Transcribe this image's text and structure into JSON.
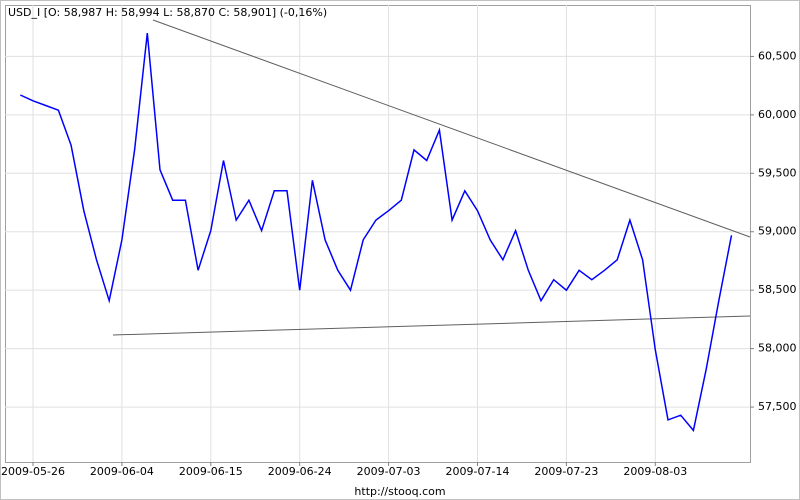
{
  "chart_data": {
    "type": "line",
    "title": "USD_I [O: 58,987  H: 58,994  L: 58,870  C: 58,901] (-0,16%)",
    "footer": "http://stooq.com",
    "categories": [
      null,
      "2009-05-26",
      null,
      null,
      null,
      null,
      null,
      null,
      "2009-06-04",
      null,
      null,
      null,
      null,
      null,
      null,
      "2009-06-15",
      null,
      null,
      null,
      null,
      null,
      null,
      "2009-06-24",
      null,
      null,
      null,
      null,
      null,
      null,
      "2009-07-03",
      null,
      null,
      null,
      null,
      null,
      null,
      "2009-07-14",
      null,
      null,
      null,
      null,
      null,
      null,
      "2009-07-23",
      null,
      null,
      null,
      null,
      null,
      null,
      "2009-08-03",
      null,
      null,
      null,
      null,
      null,
      null
    ],
    "values": [
      60.17,
      60.12,
      60.08,
      60.04,
      59.74,
      59.18,
      58.76,
      58.41,
      58.93,
      59.7,
      60.7,
      59.53,
      59.27,
      59.27,
      58.67,
      59.01,
      59.61,
      59.1,
      59.27,
      59.01,
      59.35,
      59.35,
      58.5,
      59.44,
      58.93,
      58.67,
      58.5,
      58.93,
      59.1,
      59.18,
      59.27,
      59.7,
      59.61,
      59.87,
      59.1,
      59.35,
      59.18,
      58.93,
      58.76,
      59.01,
      58.67,
      58.41,
      58.59,
      58.5,
      58.67,
      58.59,
      58.67,
      58.76,
      59.1,
      58.76,
      57.99,
      57.39,
      57.43,
      57.3,
      57.82,
      58.41,
      58.97
    ],
    "color": "#0000ff",
    "ylim": [
      57.03,
      60.94
    ],
    "yticks": [
      {
        "value": 57.5,
        "label": "57,500"
      },
      {
        "value": 58,
        "label": "58,000"
      },
      {
        "value": 58.5,
        "label": "58,500"
      },
      {
        "value": 59,
        "label": "59,000"
      },
      {
        "value": 59.5,
        "label": "59,500"
      },
      {
        "value": 60,
        "label": "60,000"
      },
      {
        "value": 60.5,
        "label": "60,500"
      }
    ],
    "grid": true
  }
}
